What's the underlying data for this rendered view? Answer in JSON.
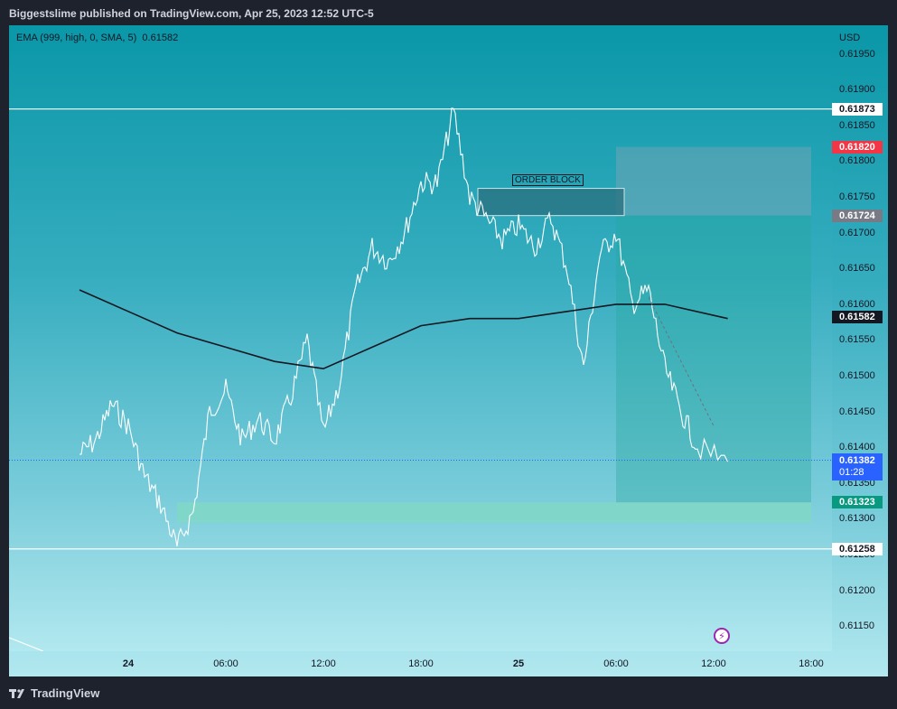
{
  "header": {
    "title": "Biggestslime published on TradingView.com, Apr 25, 2023 12:52 UTC-5"
  },
  "indicator": {
    "label": "EMA (999, high, 0, SMA, 5)",
    "value": "0.61582"
  },
  "axis": {
    "currency": "USD"
  },
  "footer": {
    "brand": "TradingView"
  },
  "annotation": {
    "order_block": "ORDER BLOCK"
  },
  "chart_data": {
    "type": "line",
    "title": "",
    "ylim": [
      0.61115,
      0.6199
    ],
    "y_ticks": [
      "0.61950",
      "0.61900",
      "0.61850",
      "0.61800",
      "0.61750",
      "0.61700",
      "0.61650",
      "0.61600",
      "0.61550",
      "0.61500",
      "0.61450",
      "0.61400",
      "0.61350",
      "0.61300",
      "0.61250",
      "0.61200",
      "0.61150"
    ],
    "x_ticks": [
      {
        "label": "24",
        "bold": true
      },
      {
        "label": "06:00"
      },
      {
        "label": "12:00"
      },
      {
        "label": "18:00"
      },
      {
        "label": "25",
        "bold": true
      },
      {
        "label": "06:00"
      },
      {
        "label": "12:00"
      },
      {
        "label": "18:00"
      }
    ],
    "price_labels": [
      {
        "value": "0.61873",
        "style": "white"
      },
      {
        "value": "0.61820",
        "style": "red"
      },
      {
        "value": "0.61724",
        "style": "gray"
      },
      {
        "value": "0.61582",
        "style": "black"
      },
      {
        "value": "0.61382",
        "countdown": "01:28",
        "style": "blue"
      },
      {
        "value": "0.61323",
        "style": "green"
      },
      {
        "value": "0.61258",
        "style": "white"
      }
    ],
    "horizontal_levels": [
      0.61873,
      0.61258
    ],
    "current_price": 0.61382,
    "series": [
      {
        "name": "Price",
        "color": "#ffffff",
        "points": [
          [
            "23 21:00",
            0.6139
          ],
          [
            "23 22:00",
            0.6141
          ],
          [
            "23 23:00",
            0.6146
          ],
          [
            "24 00:00",
            0.6143
          ],
          [
            "24 01:00",
            0.6136
          ],
          [
            "24 02:00",
            0.6132
          ],
          [
            "24 03:00",
            0.6126
          ],
          [
            "24 04:00",
            0.6131
          ],
          [
            "24 05:00",
            0.6145
          ],
          [
            "24 06:00",
            0.6148
          ],
          [
            "24 07:00",
            0.6141
          ],
          [
            "24 08:00",
            0.6144
          ],
          [
            "24 09:00",
            0.6141
          ],
          [
            "24 10:00",
            0.6147
          ],
          [
            "24 11:00",
            0.6155
          ],
          [
            "24 12:00",
            0.6142
          ],
          [
            "24 13:00",
            0.6149
          ],
          [
            "24 14:00",
            0.6162
          ],
          [
            "24 15:00",
            0.6168
          ],
          [
            "24 16:00",
            0.6166
          ],
          [
            "24 17:00",
            0.617
          ],
          [
            "24 18:00",
            0.6177
          ],
          [
            "24 19:00",
            0.6177
          ],
          [
            "24 20:00",
            0.6187
          ],
          [
            "24 21:00",
            0.6175
          ],
          [
            "24 22:00",
            0.6172
          ],
          [
            "24 23:00",
            0.6169
          ],
          [
            "25 00:00",
            0.6171
          ],
          [
            "25 01:00",
            0.6168
          ],
          [
            "25 02:00",
            0.6172
          ],
          [
            "25 03:00",
            0.6165
          ],
          [
            "25 04:00",
            0.6151
          ],
          [
            "25 05:00",
            0.6167
          ],
          [
            "25 06:00",
            0.617
          ],
          [
            "25 07:00",
            0.616
          ],
          [
            "25 08:00",
            0.6162
          ],
          [
            "25 09:00",
            0.6151
          ],
          [
            "25 10:00",
            0.6145
          ],
          [
            "25 11:00",
            0.614
          ],
          [
            "25 12:52",
            0.6138
          ]
        ]
      },
      {
        "name": "EMA (999, high, 0, SMA, 5)",
        "color": "#131722",
        "points": [
          [
            "23 21:00",
            0.6162
          ],
          [
            "24 00:00",
            0.6159
          ],
          [
            "24 03:00",
            0.6156
          ],
          [
            "24 06:00",
            0.6154
          ],
          [
            "24 09:00",
            0.6152
          ],
          [
            "24 12:00",
            0.6151
          ],
          [
            "24 15:00",
            0.6154
          ],
          [
            "24 18:00",
            0.6157
          ],
          [
            "24 21:00",
            0.6158
          ],
          [
            "25 00:00",
            0.6158
          ],
          [
            "25 03:00",
            0.6159
          ],
          [
            "25 06:00",
            0.616
          ],
          [
            "25 09:00",
            0.616
          ],
          [
            "25 12:52",
            0.6158
          ]
        ]
      }
    ],
    "zones": [
      {
        "name": "order block",
        "from": 0.61724,
        "to": 0.61762,
        "x0": "24 21:30",
        "x1": "25 06:30"
      },
      {
        "name": "demand zone",
        "from": 0.61295,
        "to": 0.61323,
        "x0": "24 03:00",
        "x1": "25 18:00"
      },
      {
        "name": "short risk",
        "from": 0.61724,
        "to": 0.6182,
        "x0": "25 06:00",
        "x1": "25 18:00"
      },
      {
        "name": "short target",
        "from": 0.61323,
        "to": 0.61724,
        "x0": "25 06:00",
        "x1": "25 18:00"
      }
    ],
    "legend": "top-left",
    "grid": false
  }
}
